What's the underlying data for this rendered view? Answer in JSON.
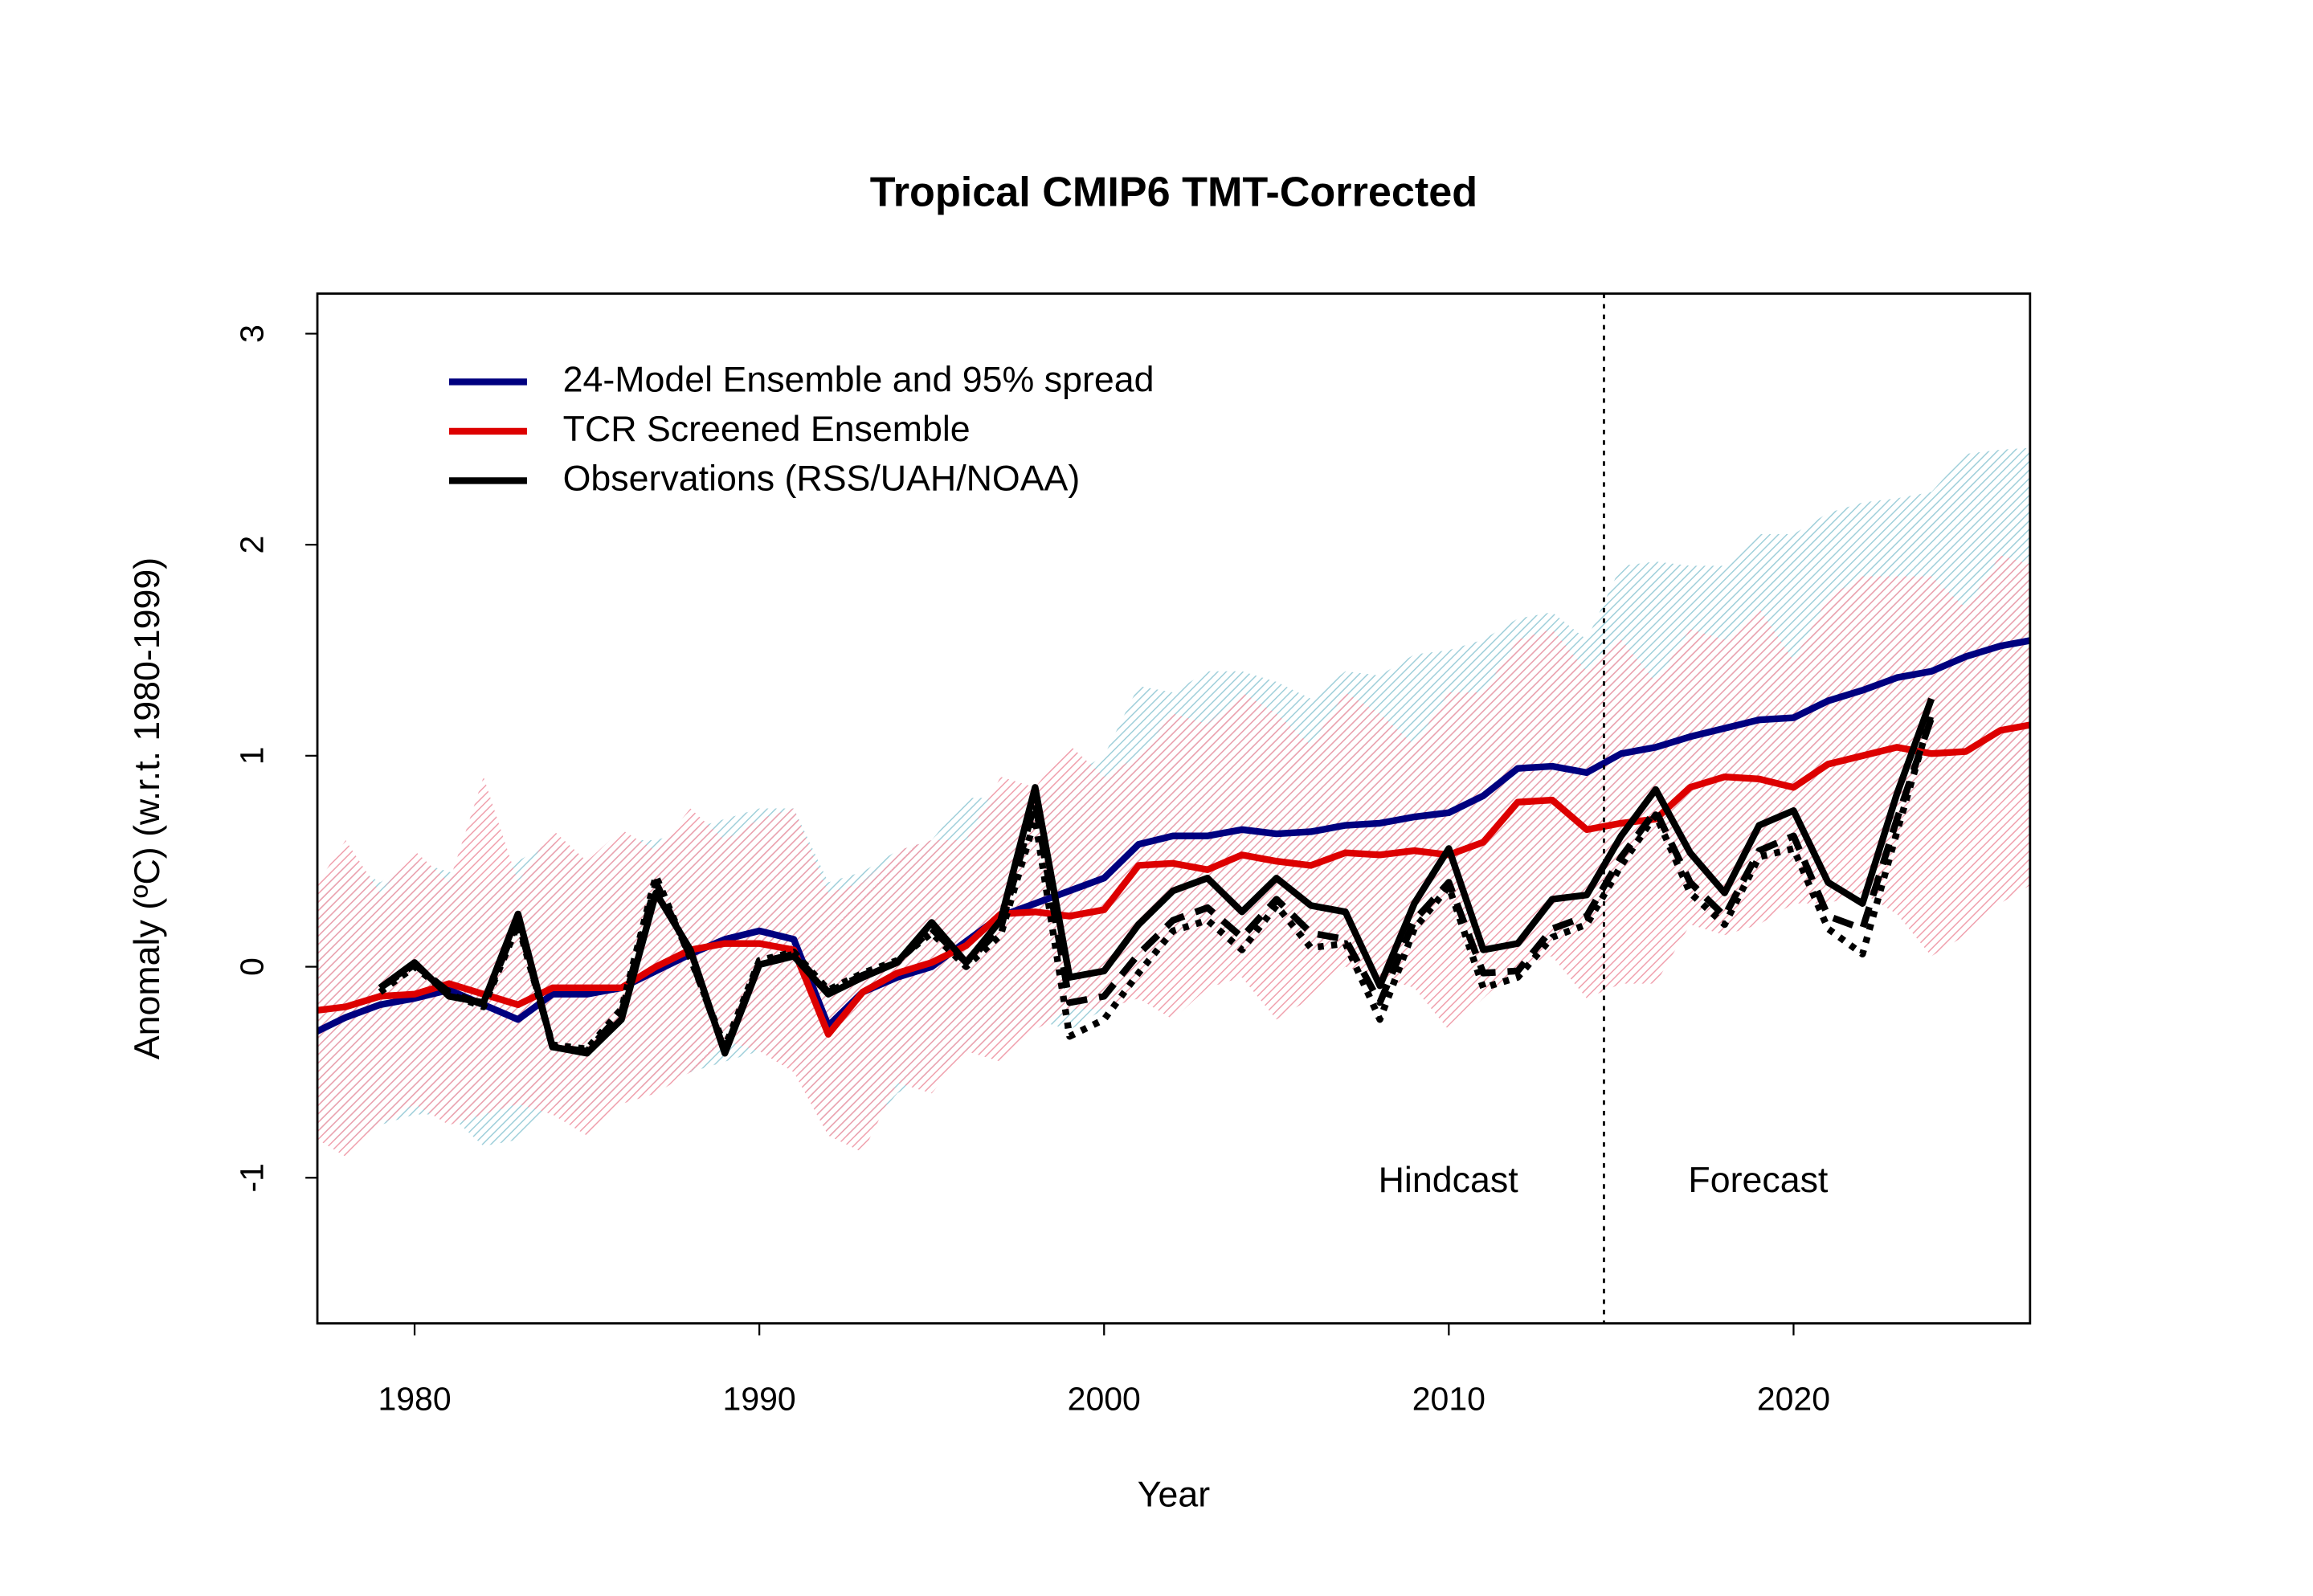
{
  "chart_data": {
    "type": "line",
    "title": "Tropical CMIP6 TMT-Corrected",
    "x_label": "Year",
    "y_label": "Anomaly (ºC) (w.r.t. 1980-1999)",
    "x": [
      1977,
      1978,
      1979,
      1980,
      1981,
      1982,
      1983,
      1984,
      1985,
      1986,
      1987,
      1988,
      1989,
      1990,
      1991,
      1992,
      1993,
      1994,
      1995,
      1996,
      1997,
      1998,
      1999,
      2000,
      2001,
      2002,
      2003,
      2004,
      2005,
      2006,
      2007,
      2008,
      2009,
      2010,
      2011,
      2012,
      2013,
      2014,
      2015,
      2016,
      2017,
      2018,
      2019,
      2020,
      2021,
      2022,
      2023,
      2024,
      2025,
      2026,
      2027
    ],
    "xlim": [
      1977.18,
      2026.86
    ],
    "ylim": [
      -1.69,
      3.19
    ],
    "xticks": [
      1980,
      1990,
      2000,
      2010,
      2020
    ],
    "yticks": [
      -1,
      0,
      1,
      2,
      3
    ],
    "legend_position": "top-left",
    "bands": [
      {
        "color": "#9fcfda",
        "lower": [
          -0.75,
          -0.85,
          -0.75,
          -0.7,
          -0.7,
          -0.85,
          -0.82,
          -0.65,
          -0.7,
          -0.6,
          -0.55,
          -0.5,
          -0.45,
          -0.4,
          -0.45,
          -0.8,
          -0.8,
          -0.6,
          -0.5,
          -0.4,
          -0.35,
          -0.25,
          -0.3,
          -0.2,
          0.0,
          0.05,
          0.0,
          0.1,
          0.05,
          0.05,
          0.1,
          0.05,
          0.1,
          0.1,
          0.15,
          0.3,
          0.3,
          0.25,
          0.3,
          0.35,
          0.4,
          0.45,
          0.45,
          0.5,
          0.55,
          0.6,
          0.65,
          0.7,
          0.75,
          0.8,
          0.85
        ],
        "upper": [
          0.3,
          0.5,
          0.4,
          0.5,
          0.45,
          0.4,
          0.5,
          0.6,
          0.5,
          0.6,
          0.6,
          0.65,
          0.7,
          0.75,
          0.75,
          0.4,
          0.45,
          0.55,
          0.6,
          0.8,
          0.8,
          0.8,
          0.9,
          1.0,
          1.33,
          1.3,
          1.4,
          1.4,
          1.35,
          1.27,
          1.4,
          1.38,
          1.48,
          1.5,
          1.55,
          1.65,
          1.68,
          1.55,
          1.9,
          1.92,
          1.9,
          1.9,
          2.05,
          2.05,
          2.15,
          2.2,
          2.22,
          2.25,
          2.43,
          2.45,
          2.46
        ]
      },
      {
        "color": "#f0a0ad",
        "lower": [
          -0.8,
          -0.9,
          -0.75,
          -0.65,
          -0.75,
          -0.7,
          -0.65,
          -0.7,
          -0.8,
          -0.65,
          -0.6,
          -0.5,
          -0.35,
          -0.4,
          -0.5,
          -0.8,
          -0.88,
          -0.55,
          -0.6,
          -0.4,
          -0.45,
          -0.3,
          -0.2,
          -0.2,
          -0.15,
          -0.25,
          -0.1,
          -0.05,
          -0.25,
          -0.15,
          0.0,
          -0.05,
          -0.1,
          -0.3,
          -0.15,
          0.0,
          0.05,
          -0.15,
          -0.08,
          -0.08,
          0.2,
          0.15,
          0.2,
          0.3,
          0.3,
          0.35,
          0.25,
          0.05,
          0.15,
          0.3,
          0.4
        ],
        "upper": [
          0.35,
          0.6,
          0.35,
          0.55,
          0.4,
          0.9,
          0.4,
          0.65,
          0.5,
          0.65,
          0.55,
          0.75,
          0.6,
          0.7,
          0.75,
          0.35,
          0.4,
          0.55,
          0.6,
          0.6,
          0.9,
          0.85,
          1.05,
          0.9,
          1.0,
          1.2,
          1.15,
          1.3,
          1.2,
          1.05,
          1.3,
          1.2,
          1.05,
          1.3,
          1.3,
          1.55,
          1.6,
          1.4,
          1.55,
          1.35,
          1.6,
          1.55,
          1.7,
          1.45,
          1.75,
          1.85,
          1.85,
          1.85,
          1.7,
          1.95,
          1.9
        ]
      }
    ],
    "series": [
      {
        "name": "24-Model Ensemble and 95% spread",
        "color": "#00007f",
        "values": [
          -0.32,
          -0.24,
          -0.18,
          -0.15,
          -0.11,
          -0.18,
          -0.25,
          -0.13,
          -0.13,
          -0.1,
          -0.02,
          0.06,
          0.13,
          0.17,
          0.13,
          -0.28,
          -0.12,
          -0.05,
          0.0,
          0.12,
          0.24,
          0.3,
          0.36,
          0.42,
          0.58,
          0.62,
          0.62,
          0.65,
          0.63,
          0.64,
          0.67,
          0.68,
          0.71,
          0.73,
          0.81,
          0.94,
          0.95,
          0.92,
          1.01,
          1.04,
          1.09,
          1.13,
          1.17,
          1.18,
          1.26,
          1.31,
          1.37,
          1.4,
          1.47,
          1.52,
          1.55
        ]
      },
      {
        "name": "TCR Screened Ensemble",
        "color": "#dd0000",
        "values": [
          -0.21,
          -0.19,
          -0.14,
          -0.13,
          -0.08,
          -0.13,
          -0.18,
          -0.1,
          -0.1,
          -0.1,
          0.0,
          0.08,
          0.11,
          0.11,
          0.08,
          -0.32,
          -0.12,
          -0.03,
          0.02,
          0.1,
          0.25,
          0.26,
          0.24,
          0.27,
          0.48,
          0.49,
          0.46,
          0.53,
          0.5,
          0.48,
          0.54,
          0.53,
          0.55,
          0.53,
          0.59,
          0.78,
          0.79,
          0.65,
          0.68,
          0.7,
          0.85,
          0.9,
          0.89,
          0.85,
          0.96,
          1.0,
          1.04,
          1.01,
          1.02,
          1.12,
          1.15
        ]
      },
      {
        "name": "Observations (RSS/UAH/NOAA)",
        "color": "#000000",
        "lines": [
          {
            "dash": "solid",
            "values": [
              null,
              null,
              -0.1,
              0.02,
              -0.14,
              -0.17,
              0.25,
              -0.38,
              -0.41,
              -0.25,
              0.35,
              0.08,
              -0.41,
              0.01,
              0.05,
              -0.13,
              -0.05,
              0.02,
              0.21,
              0.02,
              0.22,
              0.85,
              -0.05,
              -0.02,
              0.2,
              0.36,
              0.42,
              0.26,
              0.42,
              0.29,
              0.26,
              -0.09,
              0.3,
              0.56,
              0.08,
              0.11,
              0.32,
              0.34,
              0.62,
              0.84,
              0.54,
              0.35,
              0.67,
              0.74,
              0.4,
              0.3,
              0.82,
              1.27,
              null,
              null,
              null
            ]
          },
          {
            "dash": "dashed",
            "values": [
              null,
              null,
              -0.1,
              0.01,
              -0.12,
              -0.18,
              0.22,
              -0.38,
              -0.4,
              -0.22,
              0.4,
              0.05,
              -0.4,
              0.02,
              0.06,
              -0.12,
              -0.04,
              0.02,
              0.18,
              0.02,
              0.18,
              0.78,
              -0.17,
              -0.14,
              0.06,
              0.22,
              0.28,
              0.14,
              0.32,
              0.16,
              0.13,
              -0.17,
              0.22,
              0.4,
              -0.03,
              -0.02,
              0.18,
              0.24,
              0.52,
              0.74,
              0.4,
              0.24,
              0.55,
              0.62,
              0.24,
              0.18,
              0.7,
              1.18,
              null,
              null,
              null
            ]
          },
          {
            "dash": "dotted",
            "values": [
              null,
              null,
              -0.12,
              0.0,
              -0.13,
              -0.19,
              0.2,
              -0.37,
              -0.39,
              -0.2,
              0.43,
              0.04,
              -0.38,
              0.03,
              0.07,
              -0.11,
              -0.03,
              0.03,
              0.16,
              0.0,
              0.15,
              0.7,
              -0.33,
              -0.25,
              -0.03,
              0.17,
              0.22,
              0.08,
              0.29,
              0.09,
              0.11,
              -0.25,
              0.18,
              0.38,
              -0.1,
              -0.05,
              0.14,
              0.2,
              0.48,
              0.72,
              0.35,
              0.2,
              0.52,
              0.56,
              0.18,
              0.06,
              0.64,
              1.2,
              null,
              null,
              null
            ]
          }
        ]
      }
    ],
    "divider_x": 2014.5,
    "annotations": [
      "Hindcast",
      "Forecast"
    ]
  }
}
